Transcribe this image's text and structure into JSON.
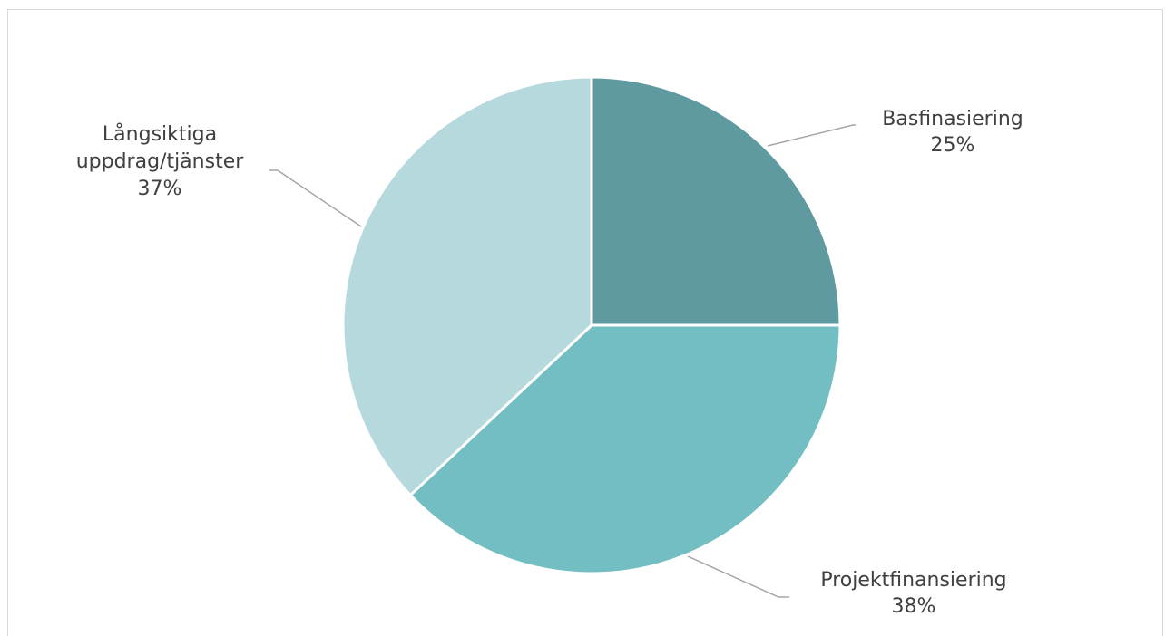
{
  "chart_data": {
    "type": "pie",
    "title": "",
    "slices": [
      {
        "label_lines": [
          "Basfinasiering"
        ],
        "percent_label": "25%",
        "value": 25,
        "color": "#5e9aa0"
      },
      {
        "label_lines": [
          "Projektfinansiering"
        ],
        "percent_label": "38%",
        "value": 38,
        "color": "#72bec3"
      },
      {
        "label_lines": [
          "Långsiktiga",
          "uppdrag/tjänster"
        ],
        "percent_label": "37%",
        "value": 37,
        "color": "#b6d9dd"
      }
    ],
    "start_angle": "12 o'clock",
    "direction": "clockwise",
    "legend": "none",
    "data_labels": "outside with leader lines"
  }
}
